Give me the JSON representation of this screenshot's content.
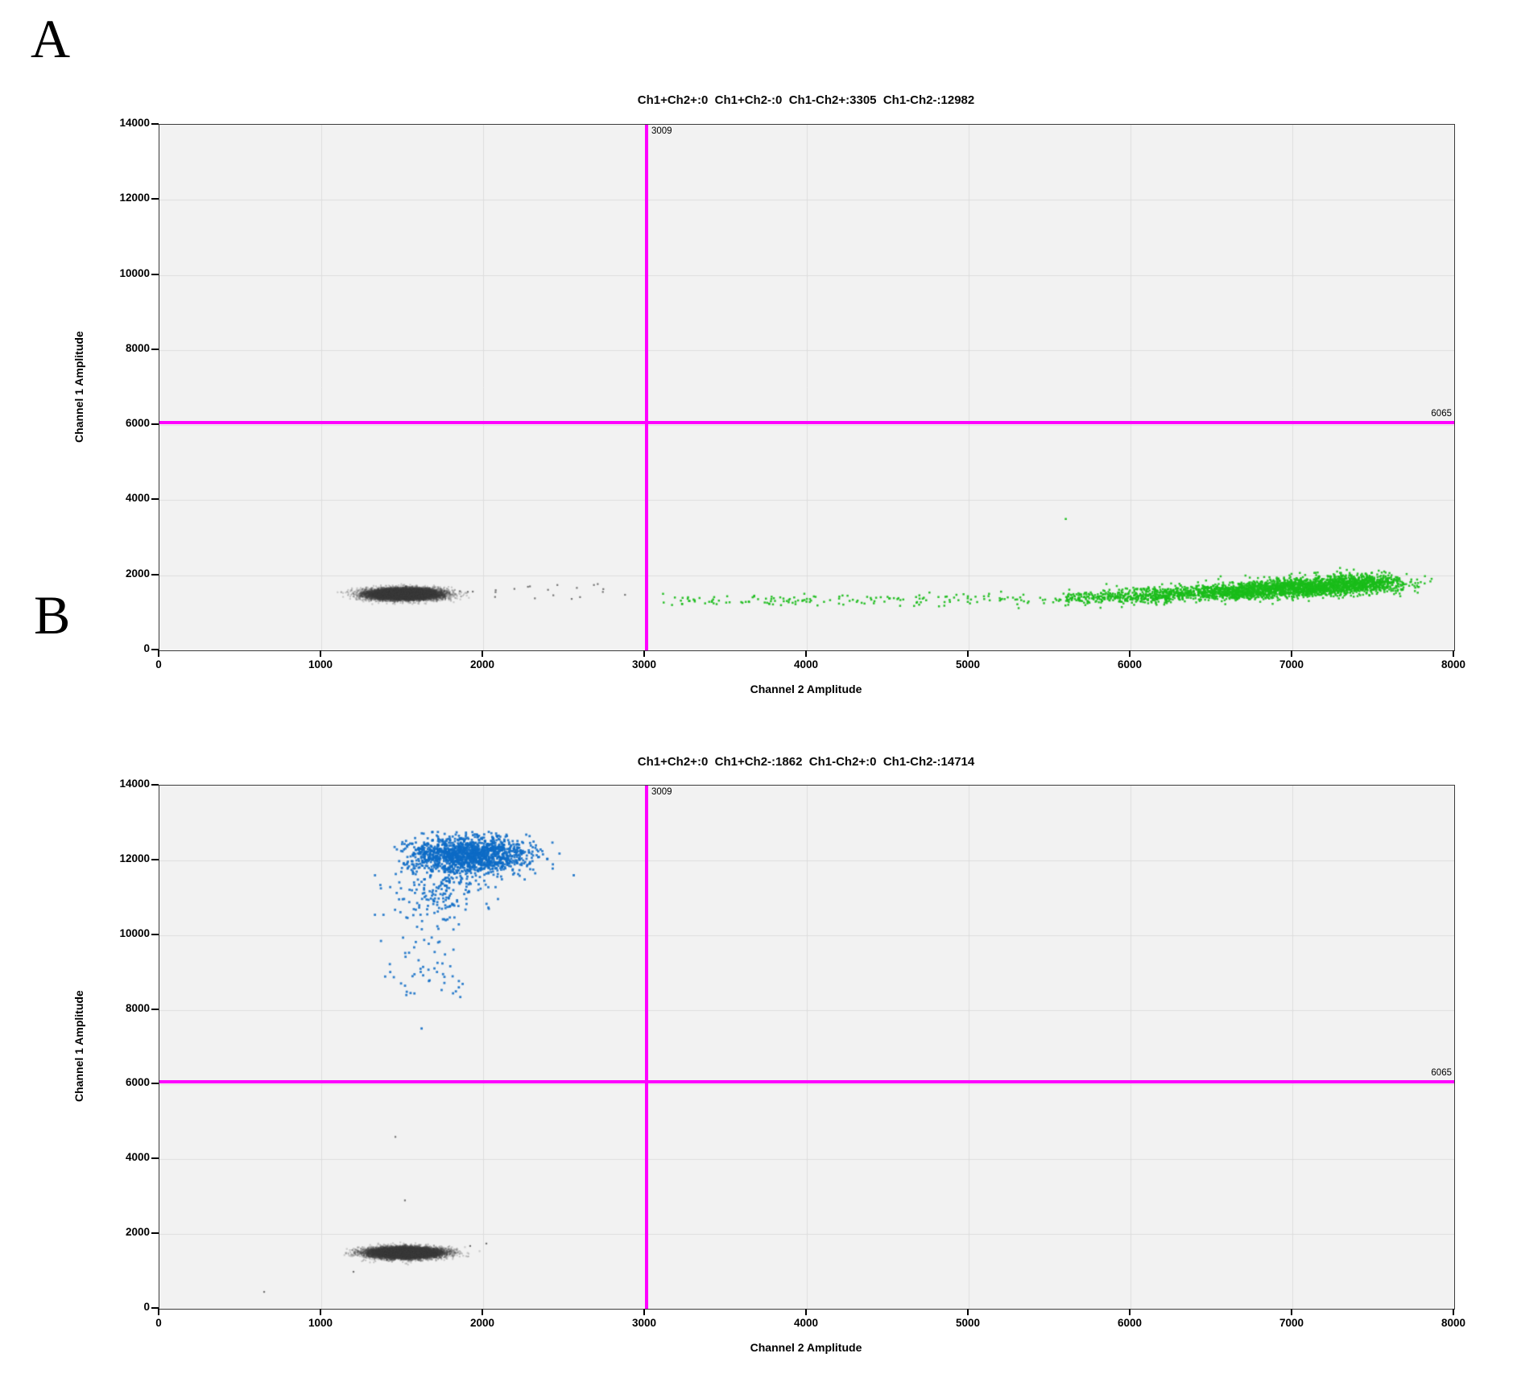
{
  "page": {
    "background": "#ffffff"
  },
  "chart_data": [
    {
      "type": "scatter",
      "panel_label": "A",
      "title": "Ch1+Ch2+:0  Ch1+Ch2-:0  Ch1-Ch2+:3305  Ch1-Ch2-:12982",
      "xlabel": "Channel 2 Amplitude",
      "ylabel": "Channel 1 Amplitude",
      "xlim": [
        0,
        8000
      ],
      "ylim": [
        0,
        14000
      ],
      "x_ticks": [
        0,
        1000,
        2000,
        3000,
        4000,
        5000,
        6000,
        7000,
        8000
      ],
      "y_ticks": [
        0,
        2000,
        4000,
        6000,
        8000,
        10000,
        12000,
        14000
      ],
      "grid": true,
      "plot_background": "#f2f2f2",
      "gridline_color": "#dcdcdc",
      "droplet_counts": {
        "ch1pos_ch2pos": 0,
        "ch1pos_ch2neg": 0,
        "ch1neg_ch2pos": 3305,
        "ch1neg_ch2neg": 12982
      },
      "crosshair": {
        "x": 3009,
        "y": 6065,
        "x_label": "3009",
        "y_label": "6065",
        "color": "#ff00ff"
      },
      "clusters": [
        {
          "name": "double-negative-droplets",
          "shape": "gauss",
          "color": "#3a3a3a",
          "alpha": 0.22,
          "dot": 2.2,
          "cx": 1510,
          "cy": 1500,
          "sx": 110,
          "sy": 75,
          "count": 12950
        },
        {
          "name": "gray-stragglers",
          "shape": "uniform-x",
          "color": "#555555",
          "alpha": 0.8,
          "dot": 2.2,
          "x0": 1900,
          "x1": 2960,
          "cy": 1530,
          "sy": 130,
          "count": 20
        },
        {
          "name": "ch2-positive-rain-sparse",
          "shape": "uniform-x",
          "color": "#1abc1a",
          "alpha": 0.92,
          "dot": 2.5,
          "x0": 3040,
          "x1": 5600,
          "cy": 1340,
          "sy": 75,
          "count": 170
        },
        {
          "name": "ch2-positive-rain-mid",
          "shape": "uniform-x",
          "color": "#1abc1a",
          "alpha": 0.92,
          "dot": 2.5,
          "x0": 5600,
          "x1": 6250,
          "cy": 1400,
          "sy": 85,
          "count": 270
        },
        {
          "name": "ch2-positive-main-1",
          "shape": "gauss",
          "color": "#1abc1a",
          "alpha": 0.9,
          "dot": 2.5,
          "cx": 6550,
          "cy": 1530,
          "sx": 280,
          "sy": 95,
          "count": 900,
          "clip": {
            "xmin": 5600,
            "xmax": 7880
          }
        },
        {
          "name": "ch2-positive-main-2",
          "shape": "gauss",
          "color": "#1abc1a",
          "alpha": 0.9,
          "dot": 2.5,
          "cx": 7050,
          "cy": 1680,
          "sx": 230,
          "sy": 115,
          "count": 1300,
          "clip": {
            "xmax": 7880
          }
        },
        {
          "name": "ch2-positive-main-3",
          "shape": "gauss",
          "color": "#1abc1a",
          "alpha": 0.9,
          "dot": 2.5,
          "cx": 7420,
          "cy": 1800,
          "sx": 160,
          "sy": 125,
          "count": 650,
          "clip": {
            "xmax": 7880,
            "ymax": 2350
          }
        },
        {
          "name": "ch2-positive-outlier",
          "shape": "points",
          "color": "#1abc1a",
          "alpha": 0.95,
          "dot": 2.5,
          "points": [
            [
              5600,
              3500
            ]
          ]
        }
      ]
    },
    {
      "type": "scatter",
      "panel_label": "B",
      "title": "Ch1+Ch2+:0  Ch1+Ch2-:1862  Ch1-Ch2+:0  Ch1-Ch2-:14714",
      "xlabel": "Channel 2 Amplitude",
      "ylabel": "Channel 1 Amplitude",
      "xlim": [
        0,
        8000
      ],
      "ylim": [
        0,
        14000
      ],
      "x_ticks": [
        0,
        1000,
        2000,
        3000,
        4000,
        5000,
        6000,
        7000,
        8000
      ],
      "y_ticks": [
        0,
        2000,
        4000,
        6000,
        8000,
        10000,
        12000,
        14000
      ],
      "grid": true,
      "plot_background": "#f2f2f2",
      "gridline_color": "#dcdcdc",
      "droplet_counts": {
        "ch1pos_ch2pos": 0,
        "ch1pos_ch2neg": 1862,
        "ch1neg_ch2pos": 0,
        "ch1neg_ch2neg": 14714
      },
      "crosshair": {
        "x": 3009,
        "y": 6065,
        "x_label": "3009",
        "y_label": "6065",
        "color": "#ff00ff"
      },
      "clusters": [
        {
          "name": "double-negative-droplets",
          "shape": "gauss",
          "color": "#3a3a3a",
          "alpha": 0.22,
          "dot": 2.2,
          "cx": 1520,
          "cy": 1500,
          "sx": 105,
          "sy": 70,
          "count": 14680
        },
        {
          "name": "gray-outliers",
          "shape": "points",
          "color": "#555555",
          "alpha": 0.8,
          "dot": 2.2,
          "points": [
            [
              1458,
              4600
            ],
            [
              1517,
              2900
            ],
            [
              1199,
              990
            ],
            [
              647,
              452
            ],
            [
              1920,
              1680
            ],
            [
              2020,
              1745
            ]
          ]
        },
        {
          "name": "ch1-positive-main",
          "shape": "gauss",
          "color": "#0d6bc5",
          "alpha": 0.85,
          "dot": 2.8,
          "cx": 1900,
          "cy": 12150,
          "sx": 180,
          "sy": 240,
          "count": 1500,
          "clip": {
            "ymax": 12780,
            "xmin": 1450,
            "xmax": 2620
          }
        },
        {
          "name": "ch1-positive-tail-mid",
          "shape": "gauss",
          "color": "#0d6bc5",
          "alpha": 0.85,
          "dot": 2.8,
          "cx": 1760,
          "cy": 11200,
          "sx": 140,
          "sy": 350,
          "count": 170,
          "clip": {
            "ymax": 12300
          }
        },
        {
          "name": "ch1-positive-tail-low",
          "shape": "uniform-y",
          "color": "#0d6bc5",
          "alpha": 0.85,
          "dot": 2.8,
          "y0": 8300,
          "y1": 10800,
          "cx": 1660,
          "sx": 120,
          "count": 70
        },
        {
          "name": "ch1-positive-sparse",
          "shape": "points",
          "color": "#0d6bc5",
          "alpha": 0.9,
          "dot": 2.8,
          "points": [
            [
              1620,
              7500
            ],
            [
              2430,
              11780
            ],
            [
              2560,
              11600
            ],
            [
              1850,
              8600
            ]
          ]
        }
      ]
    }
  ]
}
